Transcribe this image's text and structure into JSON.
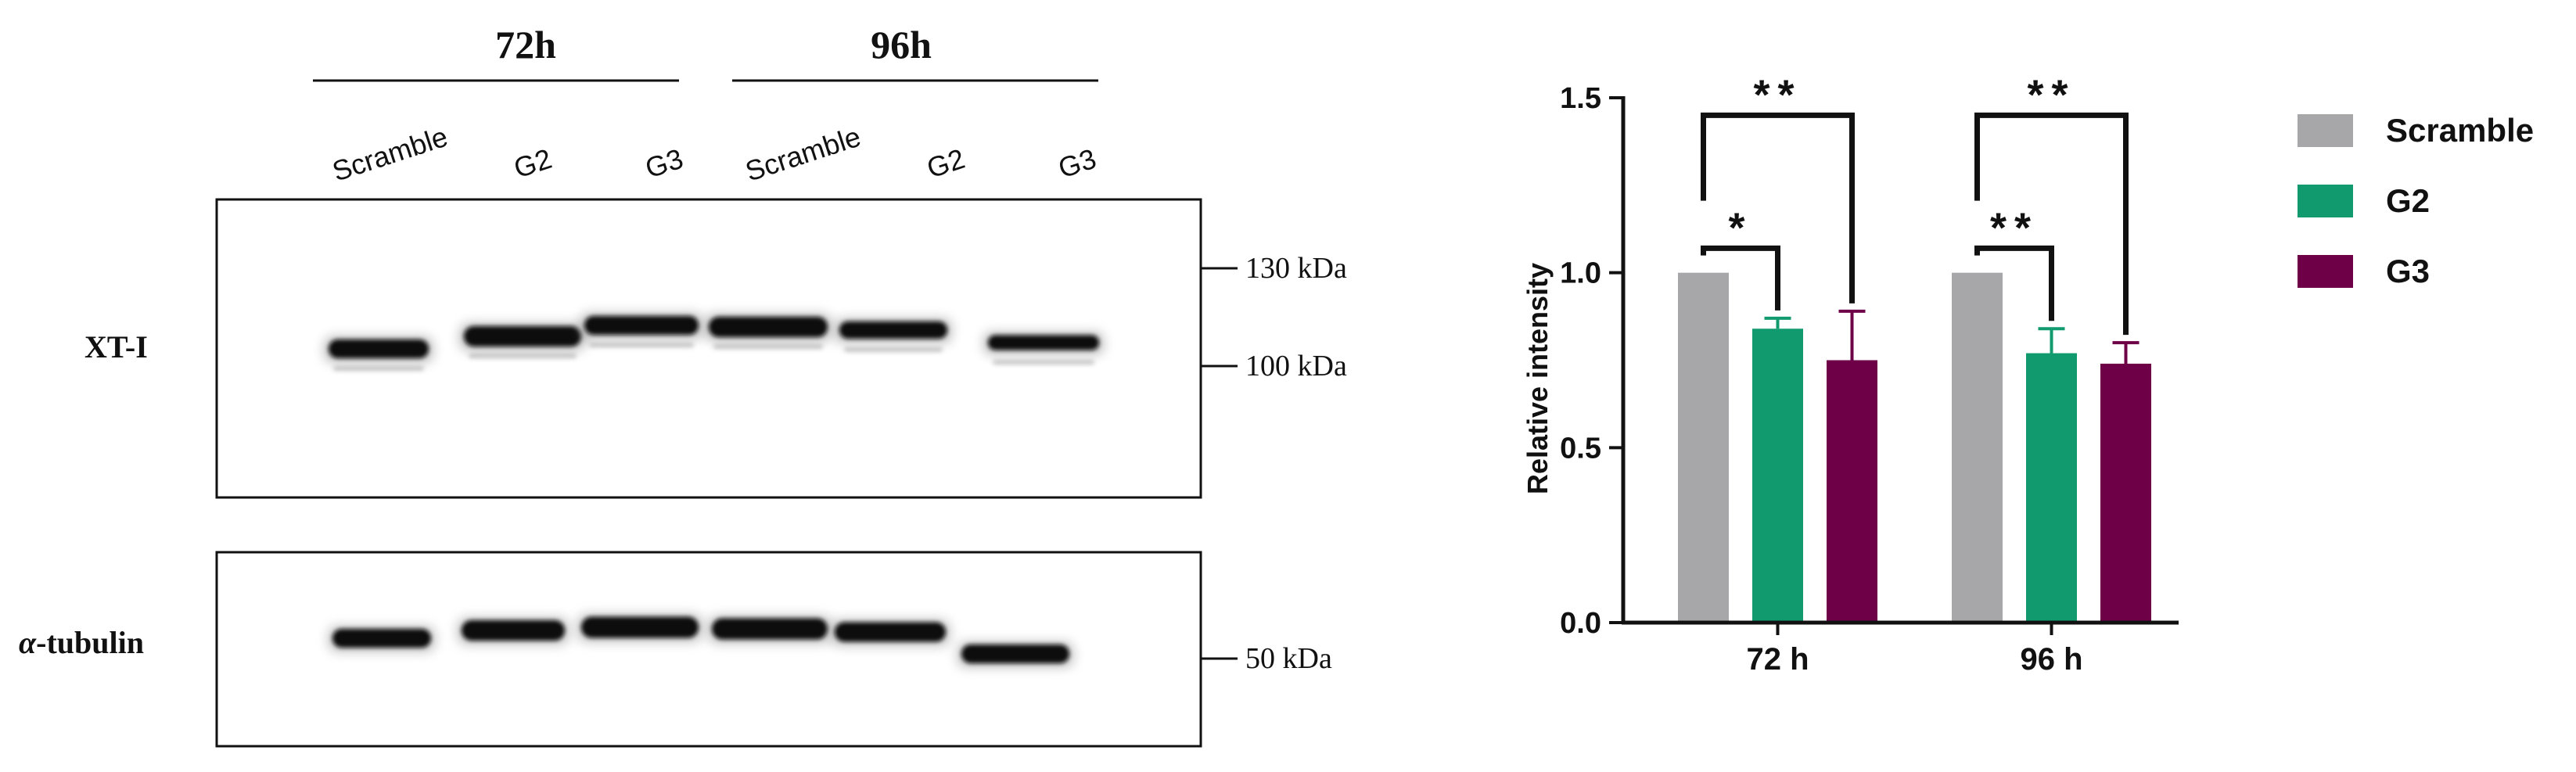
{
  "blot": {
    "time_groups": [
      {
        "label": "72h"
      },
      {
        "label": "96h"
      }
    ],
    "lanes": [
      "Scramble",
      "G2",
      "G3",
      "Scramble",
      "G2",
      "G3"
    ],
    "rows": [
      {
        "label": "XT-I",
        "markers": [
          "130 kDa",
          "100 kDa"
        ]
      },
      {
        "label_prefix": "α",
        "label": "-tubulin",
        "markers": [
          "50 kDa"
        ]
      }
    ],
    "band_color": "#0a0a0a"
  },
  "chart_data": {
    "type": "bar",
    "categories": [
      "72 h",
      "96 h"
    ],
    "series": [
      {
        "name": "Scramble",
        "color": "#a7a7a9",
        "values": [
          1.0,
          1.0
        ],
        "errors": [
          0,
          0
        ]
      },
      {
        "name": "G2",
        "color": "#109a6e",
        "values": [
          0.84,
          0.77
        ],
        "errors": [
          0.03,
          0.07
        ]
      },
      {
        "name": "G3",
        "color": "#6e0047",
        "values": [
          0.75,
          0.74
        ],
        "errors": [
          0.14,
          0.06
        ]
      }
    ],
    "ylabel": "Relative intensity",
    "xlabel": "",
    "ylim": [
      0,
      1.5
    ],
    "yticks": [
      "0.0",
      "0.5",
      "1.0",
      "1.5"
    ],
    "grid": false,
    "legend_position": "right",
    "significance": [
      {
        "group": "72 h",
        "from": "Scramble",
        "to": "G2",
        "label": "*"
      },
      {
        "group": "72 h",
        "from": "Scramble",
        "to": "G3",
        "label": "**"
      },
      {
        "group": "96 h",
        "from": "Scramble",
        "to": "G2",
        "label": "**"
      },
      {
        "group": "96 h",
        "from": "Scramble",
        "to": "G3",
        "label": "**"
      }
    ]
  }
}
